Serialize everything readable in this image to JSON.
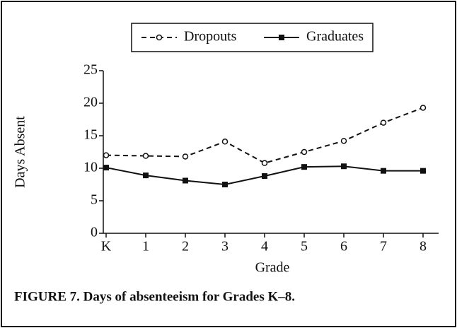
{
  "chart_data": {
    "type": "line",
    "caption": "FIGURE 7. Days of absenteeism for Grades K–8.",
    "x_label": "Grade",
    "y_label": "Days Absent",
    "categories": [
      "K",
      "1",
      "2",
      "3",
      "4",
      "5",
      "6",
      "7",
      "8"
    ],
    "series": [
      {
        "name": "Dropouts",
        "color": "#111111",
        "dashed": true,
        "marker": "open-circle",
        "values": [
          12,
          11.9,
          11.8,
          14.1,
          10.8,
          12.5,
          14.2,
          17,
          19.3
        ]
      },
      {
        "name": "Graduates",
        "color": "#111111",
        "dashed": false,
        "marker": "filled-square",
        "values": [
          10.1,
          8.9,
          8.1,
          7.5,
          8.8,
          10.2,
          10.3,
          9.6,
          9.6
        ]
      }
    ],
    "ylim": [
      0,
      25
    ],
    "yticks": [
      0,
      5,
      10,
      15,
      20,
      25
    ],
    "grid": false,
    "legend": "top"
  }
}
